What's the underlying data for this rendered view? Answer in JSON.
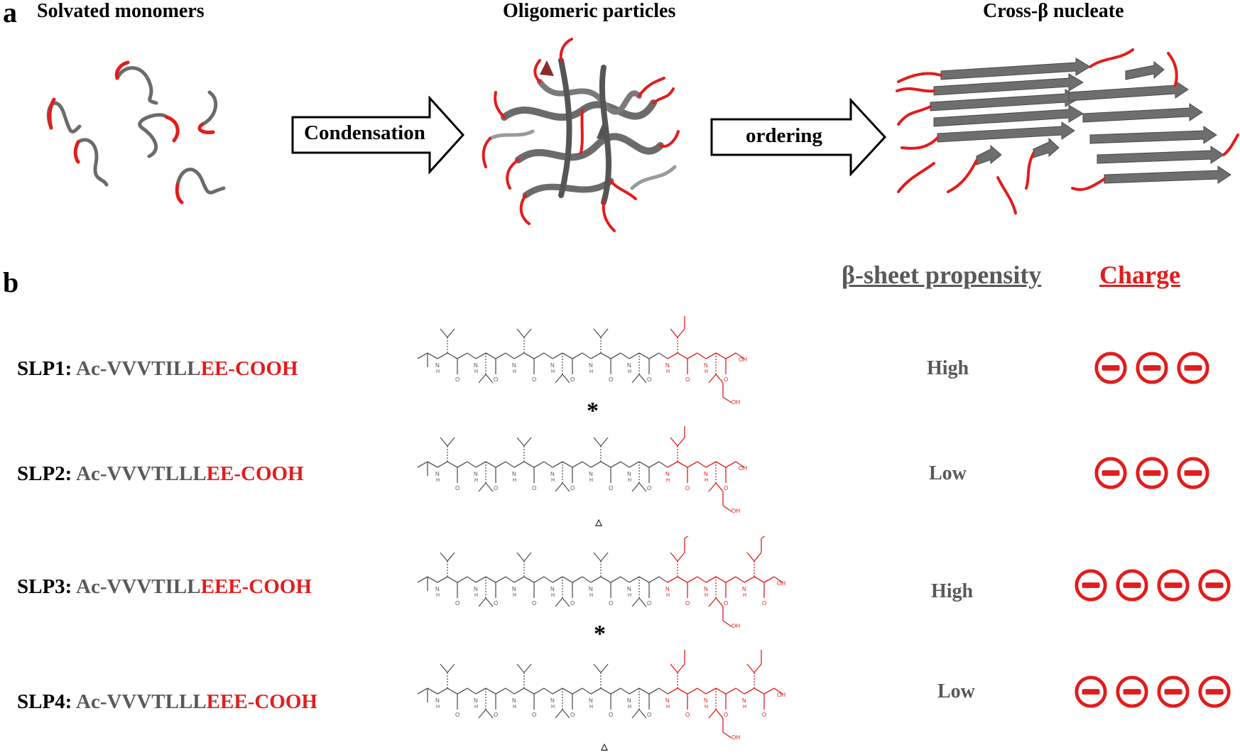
{
  "panel_a": {
    "letter": "a",
    "stages": [
      {
        "title": "Solvated monomers"
      },
      {
        "title": "Oligomeric particles"
      },
      {
        "title": "Cross-β nucleate"
      }
    ],
    "arrows": [
      {
        "label": "Condensation"
      },
      {
        "label": "ordering"
      }
    ]
  },
  "panel_b": {
    "letter": "b",
    "headers": {
      "propensity": "β-sheet propensity",
      "charge": "Charge"
    },
    "rows": [
      {
        "name": "SLP1:",
        "seq_grey": "Ac-VVVTILL",
        "seq_red": "EE-COOH",
        "propensity": "High",
        "charges": 3,
        "marker": "*"
      },
      {
        "name": "SLP2:",
        "seq_grey": "Ac-VVVTLLL",
        "seq_red": "EE-COOH",
        "propensity": "Low",
        "charges": 3,
        "marker": "▵"
      },
      {
        "name": "SLP3:",
        "seq_grey": "Ac-VVVTILL",
        "seq_red": "EEE-COOH",
        "propensity": "High",
        "charges": 4,
        "marker": "*"
      },
      {
        "name": "SLP4:",
        "seq_grey": "Ac-VVVTLLL",
        "seq_red": "EEE-COOH",
        "propensity": "Low",
        "charges": 4,
        "marker": "▵"
      }
    ],
    "structure_labels": {
      "oh": "OH",
      "n": "N",
      "h": "H",
      "o": "O"
    }
  },
  "colors": {
    "red": "#e31c1c",
    "grey": "#595959",
    "dark_grey": "#6b6b6b",
    "black": "#000000"
  },
  "icons": [
    "arrow-right-icon",
    "minus-circle-icon",
    "peptide-structure-icon",
    "monomer-strand-icon",
    "beta-sheet-icon"
  ]
}
